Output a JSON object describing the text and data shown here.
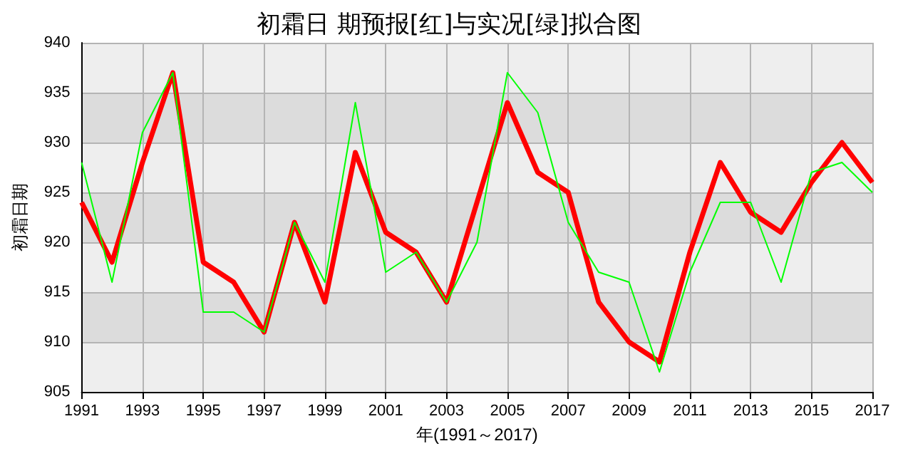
{
  "chart_data": {
    "type": "line",
    "title": "初霜日 期预报[红]与实况[绿]拟合图",
    "xlabel": "年(1991～2017)",
    "ylabel": "初霜日期",
    "x": [
      1991,
      1992,
      1993,
      1994,
      1995,
      1996,
      1997,
      1998,
      1999,
      2000,
      2001,
      2002,
      2003,
      2004,
      2005,
      2006,
      2007,
      2008,
      2009,
      2010,
      2011,
      2012,
      2013,
      2014,
      2015,
      2016,
      2017
    ],
    "series": [
      {
        "color": "#ff0000",
        "values": [
          924,
          918,
          928,
          937,
          918,
          916,
          911,
          922,
          914,
          929,
          921,
          919,
          914,
          924,
          934,
          927,
          925,
          914,
          910,
          908,
          919,
          928,
          923,
          921,
          926,
          930,
          926
        ]
      },
      {
        "color": "#00ff00",
        "values": [
          928,
          916,
          931,
          937,
          913,
          913,
          911,
          922,
          916,
          934,
          917,
          919,
          914,
          920,
          937,
          933,
          922,
          917,
          916,
          907,
          917,
          924,
          924,
          916,
          927,
          928,
          925
        ]
      }
    ],
    "xlim": [
      1991,
      2017
    ],
    "xticks": [
      1991,
      1993,
      1995,
      1997,
      1999,
      2001,
      2003,
      2005,
      2007,
      2009,
      2011,
      2013,
      2015,
      2017
    ],
    "ylim": [
      905,
      940
    ],
    "yticks": [
      905,
      910,
      915,
      920,
      925,
      930,
      935,
      940
    ],
    "grid": true,
    "marker": "none",
    "line_style": "solid"
  }
}
